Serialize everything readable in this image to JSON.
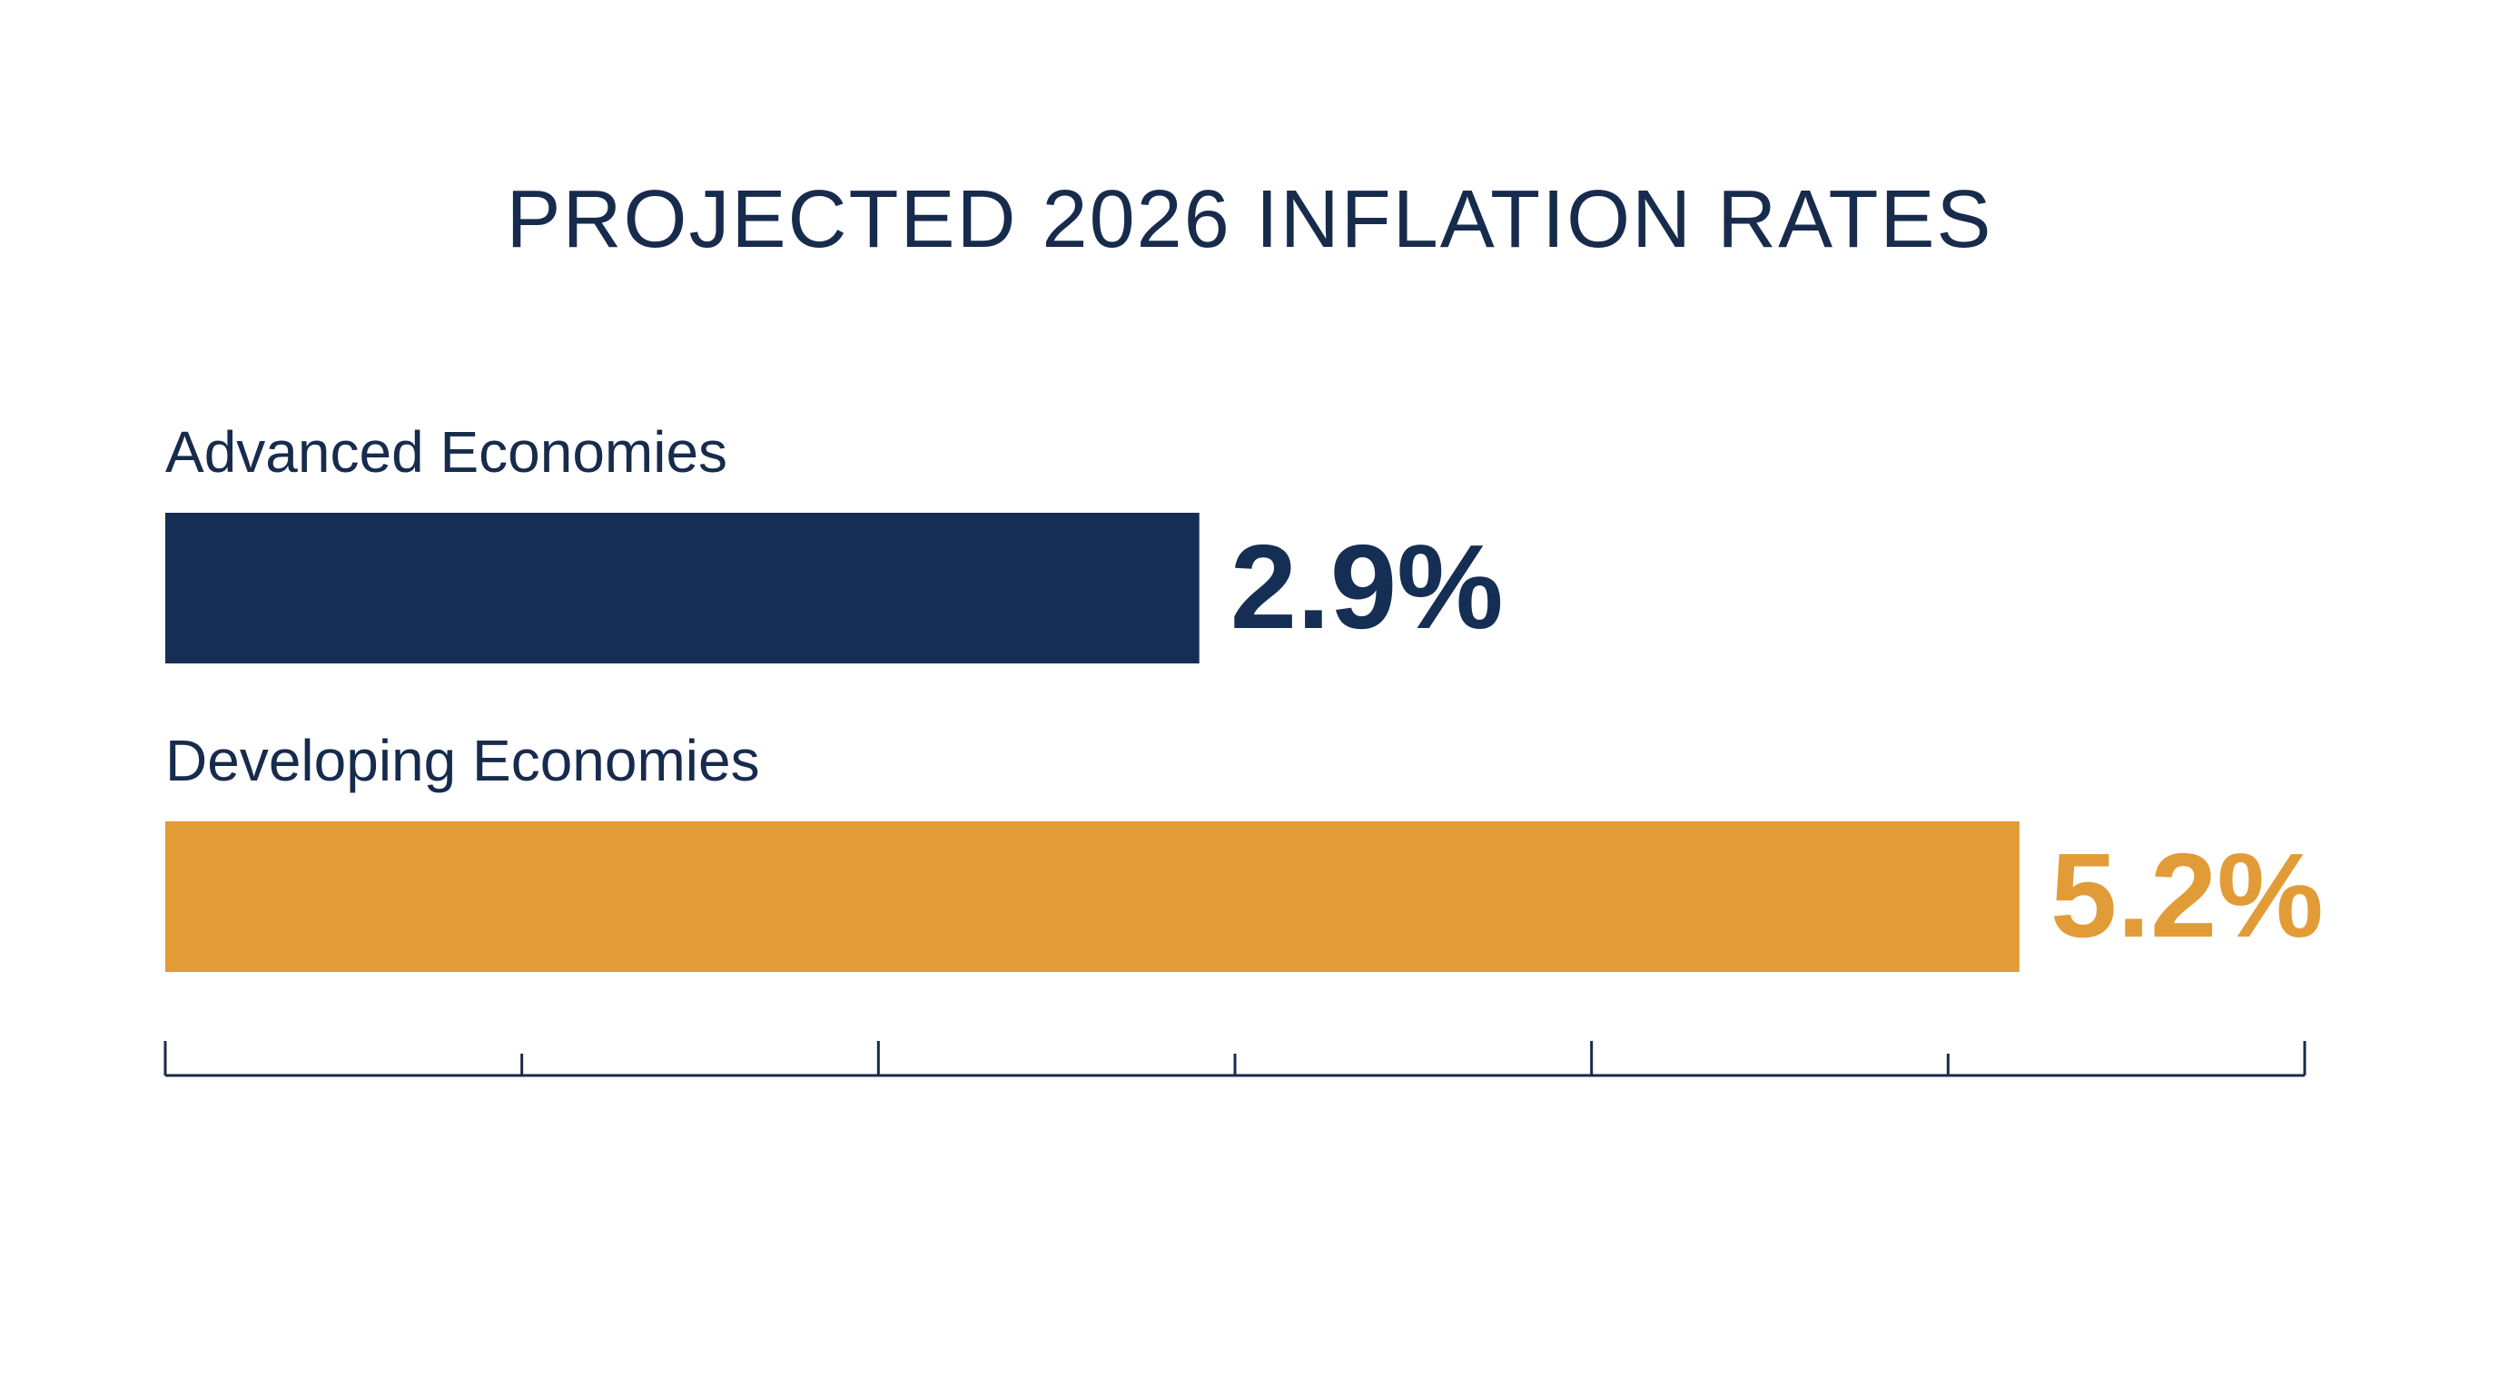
{
  "chart_data": {
    "type": "bar",
    "orientation": "horizontal",
    "title": "PROJECTED 2026 INFLATION RATES",
    "categories": [
      "Advanced Economies",
      "Developing Economies"
    ],
    "values": [
      2.9,
      5.2
    ],
    "value_labels": [
      "2.9%",
      "5.2%"
    ],
    "unit": "%",
    "xlim": [
      0,
      6
    ],
    "xticks": [
      0,
      1,
      2,
      3,
      4,
      5,
      6
    ],
    "tick_labels_shown": false,
    "grid": false,
    "legend": "none",
    "xlabel": "",
    "ylabel": ""
  },
  "colors": {
    "title": "#172b4d",
    "category_label": "#172b4d",
    "series": [
      "#152e54",
      "#e29c37"
    ],
    "axis": "#1b2a4a",
    "background": "#ffffff"
  }
}
